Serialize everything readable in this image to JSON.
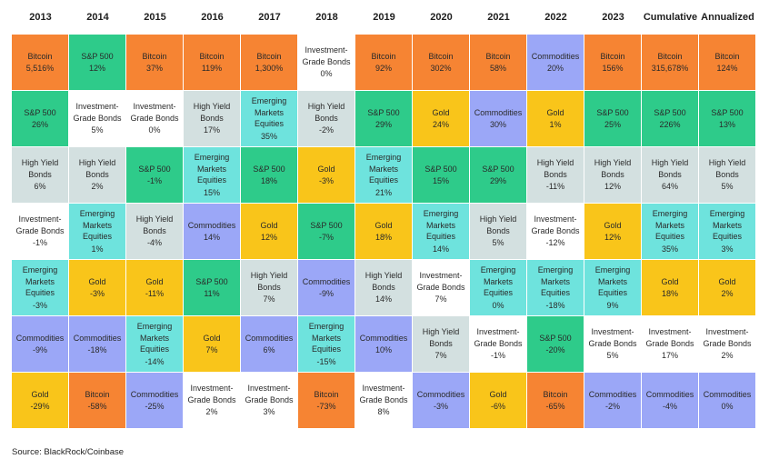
{
  "chart_data": {
    "type": "table",
    "columns": [
      "2013",
      "2014",
      "2015",
      "2016",
      "2017",
      "2018",
      "2019",
      "2020",
      "2021",
      "2022",
      "2023",
      "Cumulative",
      "Annualized"
    ],
    "colors": {
      "Bitcoin": "#f68433",
      "S&P 500": "#2ecb8a",
      "Investment-Grade Bonds": "#ffffff",
      "High Yield Bonds": "#d3e0e0",
      "Emerging Markets Equities": "#6ee3dd",
      "Gold": "#f9c51a",
      "Commodities": "#9ba7f7"
    },
    "table": [
      [
        {
          "asset": "Bitcoin",
          "value": "5,516%"
        },
        {
          "asset": "S&P 500",
          "value": "26%"
        },
        {
          "asset": "High Yield Bonds",
          "value": "6%"
        },
        {
          "asset": "Investment-Grade Bonds",
          "value": "-1%"
        },
        {
          "asset": "Emerging Markets Equities",
          "value": "-3%"
        },
        {
          "asset": "Commodities",
          "value": "-9%"
        },
        {
          "asset": "Gold",
          "value": "-29%"
        }
      ],
      [
        {
          "asset": "S&P 500",
          "value": "12%"
        },
        {
          "asset": "Investment-Grade Bonds",
          "value": "5%"
        },
        {
          "asset": "High Yield Bonds",
          "value": "2%"
        },
        {
          "asset": "Emerging Markets Equities",
          "value": "1%"
        },
        {
          "asset": "Gold",
          "value": "-3%"
        },
        {
          "asset": "Commodities",
          "value": "-18%"
        },
        {
          "asset": "Bitcoin",
          "value": "-58%"
        }
      ],
      [
        {
          "asset": "Bitcoin",
          "value": "37%"
        },
        {
          "asset": "Investment-Grade Bonds",
          "value": "0%"
        },
        {
          "asset": "S&P 500",
          "value": "-1%"
        },
        {
          "asset": "High Yield Bonds",
          "value": "-4%"
        },
        {
          "asset": "Gold",
          "value": "-11%"
        },
        {
          "asset": "Emerging Markets Equities",
          "value": "-14%"
        },
        {
          "asset": "Commodities",
          "value": "-25%"
        }
      ],
      [
        {
          "asset": "Bitcoin",
          "value": "119%"
        },
        {
          "asset": "High Yield Bonds",
          "value": "17%"
        },
        {
          "asset": "Emerging Markets Equities",
          "value": "15%"
        },
        {
          "asset": "Commodities",
          "value": "14%"
        },
        {
          "asset": "S&P 500",
          "value": "11%"
        },
        {
          "asset": "Gold",
          "value": "7%"
        },
        {
          "asset": "Investment-Grade Bonds",
          "value": "2%"
        }
      ],
      [
        {
          "asset": "Bitcoin",
          "value": "1,300%"
        },
        {
          "asset": "Emerging Markets Equities",
          "value": "35%"
        },
        {
          "asset": "S&P 500",
          "value": "18%"
        },
        {
          "asset": "Gold",
          "value": "12%"
        },
        {
          "asset": "High Yield Bonds",
          "value": "7%"
        },
        {
          "asset": "Commodities",
          "value": "6%"
        },
        {
          "asset": "Investment-Grade Bonds",
          "value": "3%"
        }
      ],
      [
        {
          "asset": "Investment-Grade Bonds",
          "value": "0%"
        },
        {
          "asset": "High Yield Bonds",
          "value": "-2%"
        },
        {
          "asset": "Gold",
          "value": "-3%"
        },
        {
          "asset": "S&P 500",
          "value": "-7%"
        },
        {
          "asset": "Commodities",
          "value": "-9%"
        },
        {
          "asset": "Emerging Markets Equities",
          "value": "-15%"
        },
        {
          "asset": "Bitcoin",
          "value": "-73%"
        }
      ],
      [
        {
          "asset": "Bitcoin",
          "value": "92%"
        },
        {
          "asset": "S&P 500",
          "value": "29%"
        },
        {
          "asset": "Emerging Markets Equities",
          "value": "21%"
        },
        {
          "asset": "Gold",
          "value": "18%"
        },
        {
          "asset": "High Yield Bonds",
          "value": "14%"
        },
        {
          "asset": "Commodities",
          "value": "10%"
        },
        {
          "asset": "Investment-Grade Bonds",
          "value": "8%"
        }
      ],
      [
        {
          "asset": "Bitcoin",
          "value": "302%"
        },
        {
          "asset": "Gold",
          "value": "24%"
        },
        {
          "asset": "S&P 500",
          "value": "15%"
        },
        {
          "asset": "Emerging Markets Equities",
          "value": "14%"
        },
        {
          "asset": "Investment-Grade Bonds",
          "value": "7%"
        },
        {
          "asset": "High Yield Bonds",
          "value": "7%"
        },
        {
          "asset": "Commodities",
          "value": "-3%"
        }
      ],
      [
        {
          "asset": "Bitcoin",
          "value": "58%"
        },
        {
          "asset": "Commodities",
          "value": "30%"
        },
        {
          "asset": "S&P 500",
          "value": "29%"
        },
        {
          "asset": "High Yield Bonds",
          "value": "5%"
        },
        {
          "asset": "Emerging Markets Equities",
          "value": "0%"
        },
        {
          "asset": "Investment-Grade Bonds",
          "value": "-1%"
        },
        {
          "asset": "Gold",
          "value": "-6%"
        }
      ],
      [
        {
          "asset": "Commodities",
          "value": "20%"
        },
        {
          "asset": "Gold",
          "value": "1%"
        },
        {
          "asset": "High Yield Bonds",
          "value": "-11%"
        },
        {
          "asset": "Investment-Grade Bonds",
          "value": "-12%"
        },
        {
          "asset": "Emerging Markets Equities",
          "value": "-18%"
        },
        {
          "asset": "S&P 500",
          "value": "-20%"
        },
        {
          "asset": "Bitcoin",
          "value": "-65%"
        }
      ],
      [
        {
          "asset": "Bitcoin",
          "value": "156%"
        },
        {
          "asset": "S&P 500",
          "value": "25%"
        },
        {
          "asset": "High Yield Bonds",
          "value": "12%"
        },
        {
          "asset": "Gold",
          "value": "12%"
        },
        {
          "asset": "Emerging Markets Equities",
          "value": "9%"
        },
        {
          "asset": "Investment-Grade Bonds",
          "value": "5%"
        },
        {
          "asset": "Commodities",
          "value": "-2%"
        }
      ],
      [
        {
          "asset": "Bitcoin",
          "value": "315,678%"
        },
        {
          "asset": "S&P 500",
          "value": "226%"
        },
        {
          "asset": "High Yield Bonds",
          "value": "64%"
        },
        {
          "asset": "Emerging Markets Equities",
          "value": "35%"
        },
        {
          "asset": "Gold",
          "value": "18%"
        },
        {
          "asset": "Investment-Grade Bonds",
          "value": "17%"
        },
        {
          "asset": "Commodities",
          "value": "-4%"
        }
      ],
      [
        {
          "asset": "Bitcoin",
          "value": "124%"
        },
        {
          "asset": "S&P 500",
          "value": "13%"
        },
        {
          "asset": "High Yield Bonds",
          "value": "5%"
        },
        {
          "asset": "Emerging Markets Equities",
          "value": "3%"
        },
        {
          "asset": "Gold",
          "value": "2%"
        },
        {
          "asset": "Investment-Grade Bonds",
          "value": "2%"
        },
        {
          "asset": "Commodities",
          "value": "0%"
        }
      ]
    ]
  },
  "source": "Source: BlackRock/Coinbase"
}
